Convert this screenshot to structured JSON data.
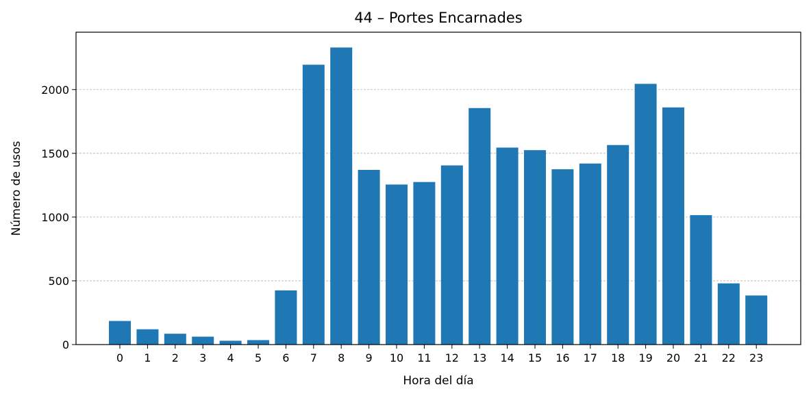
{
  "chart_data": {
    "type": "bar",
    "title": "44 – Portes Encarnades",
    "xlabel": "Hora del día",
    "ylabel": "Número de usos",
    "categories": [
      "0",
      "1",
      "2",
      "3",
      "4",
      "5",
      "6",
      "7",
      "8",
      "9",
      "10",
      "11",
      "12",
      "13",
      "14",
      "15",
      "16",
      "17",
      "18",
      "19",
      "20",
      "21",
      "22",
      "23"
    ],
    "values": [
      185,
      120,
      85,
      62,
      30,
      35,
      425,
      2195,
      2330,
      1370,
      1255,
      1275,
      1405,
      1855,
      1545,
      1525,
      1375,
      1420,
      1565,
      2045,
      1860,
      1015,
      480,
      385
    ],
    "ylim": [
      0,
      2450
    ],
    "yticks": [
      0,
      500,
      1000,
      1500,
      2000
    ],
    "grid": "y",
    "bar_color": "#1f77b4"
  }
}
